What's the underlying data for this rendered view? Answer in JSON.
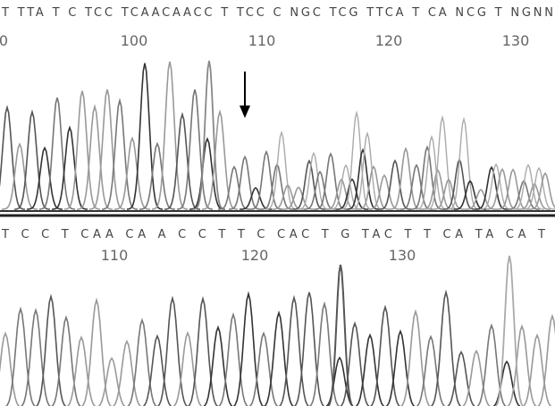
{
  "top_panel": {
    "sequence": "T TTA T C TCC TCAACAACC T TCC C NGC TCG TTCA T CA NCG T NGNN",
    "positions": [
      0,
      100,
      110,
      120,
      130
    ]
  },
  "bottom_panel": {
    "sequence": "T C C T CAA CA A C C T T C CAC T G TAC T T CA TA CA T",
    "positions": [
      110,
      120,
      130
    ]
  }
}
